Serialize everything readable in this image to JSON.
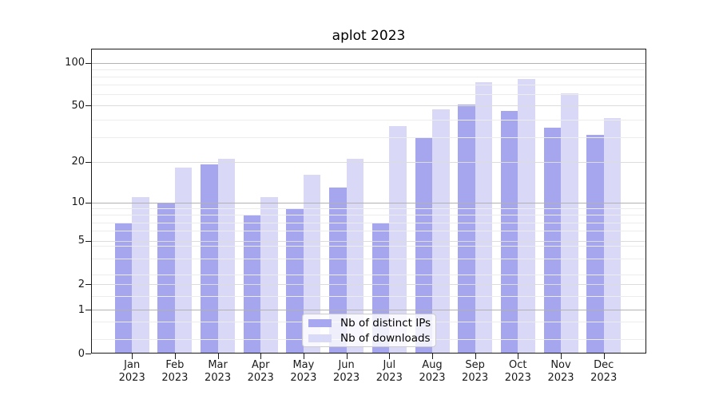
{
  "title": "aplot 2023",
  "colors": {
    "bar_ips": "#a8a8f0",
    "bar_downloads": "#d9d9f8",
    "grid_major": "#b2b2b2",
    "grid_labeled": "#dcdcdc",
    "grid_minor": "#ececec",
    "axis": "#1a1a1a",
    "background": "#ffffff"
  },
  "legend": {
    "items": [
      {
        "label": "Nb of distinct IPs",
        "key": "ips"
      },
      {
        "label": "Nb of downloads",
        "key": "downloads"
      }
    ]
  },
  "chart_data": {
    "type": "bar",
    "title": "aplot 2023",
    "categories": [
      "Jan",
      "Feb",
      "Mar",
      "Apr",
      "May",
      "Jun",
      "Jul",
      "Aug",
      "Sep",
      "Oct",
      "Nov",
      "Dec"
    ],
    "year": "2023",
    "series": [
      {
        "name": "Nb of distinct IPs",
        "key": "ips",
        "values": [
          7,
          10,
          19,
          8,
          9,
          13,
          7,
          30,
          51,
          46,
          35,
          31
        ]
      },
      {
        "name": "Nb of downloads",
        "key": "downloads",
        "values": [
          11,
          18,
          21,
          11,
          16,
          21,
          36,
          47,
          73,
          77,
          61,
          41
        ]
      }
    ],
    "yscale": "log1p",
    "ylim": [
      0,
      125
    ],
    "yticks": [
      {
        "label": "100",
        "value": 100
      },
      {
        "label": "50",
        "value": 50
      },
      {
        "label": "20",
        "value": 20
      },
      {
        "label": "10",
        "value": 10
      },
      {
        "label": "5",
        "value": 5
      },
      {
        "label": "2",
        "value": 2
      },
      {
        "label": "1",
        "value": 1
      },
      {
        "label": "0",
        "value": 0
      }
    ],
    "grid": {
      "major": [
        1,
        10,
        100
      ],
      "labeled": [
        2,
        5,
        20,
        50
      ],
      "minor": [
        0.25,
        0.65,
        1.5,
        2.5,
        3.5,
        4.5,
        6,
        7,
        8,
        9,
        30,
        40,
        60,
        70,
        80,
        90
      ]
    },
    "legend_position": "lower center",
    "grid_on": true
  }
}
